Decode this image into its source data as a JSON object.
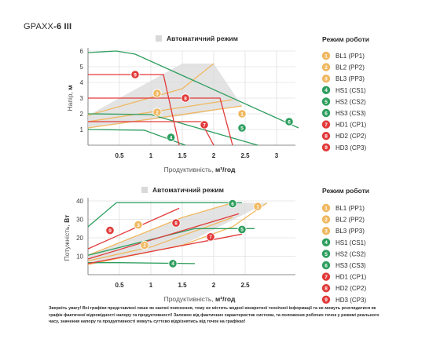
{
  "header": {
    "model_light": "GPA",
    "model_mid": "XX",
    "model_bold": "-6 III"
  },
  "colors": {
    "BL": "#f0b860",
    "HS": "#2e9e5e",
    "HD": "#e23a3a",
    "auto_fill": "#d9d9d9",
    "grid": "#e0e0e0"
  },
  "legend": {
    "title": "Режим роботи",
    "items": [
      {
        "num": "1",
        "label": "BL1 (PP1)",
        "group": "BL"
      },
      {
        "num": "2",
        "label": "BL2 (PP2)",
        "group": "BL"
      },
      {
        "num": "3",
        "label": "BL3 (PP3)",
        "group": "BL"
      },
      {
        "num": "4",
        "label": "HS1 (CS1)",
        "group": "HS"
      },
      {
        "num": "5",
        "label": "HS2 (CS2)",
        "group": "HS"
      },
      {
        "num": "6",
        "label": "HS3 (CS3)",
        "group": "HS"
      },
      {
        "num": "7",
        "label": "HD1 (CP1)",
        "group": "HD"
      },
      {
        "num": "8",
        "label": "HD2 (CP2)",
        "group": "HD"
      },
      {
        "num": "9",
        "label": "HD3 (CP3)",
        "group": "HD"
      }
    ]
  },
  "chart_data": [
    {
      "type": "line",
      "auto_mode_label": "Автоматичний режим",
      "xlabel": "Продуктивність,",
      "xlabel_unit": "м³/год",
      "ylabel": "Напір,",
      "ylabel_unit": "м",
      "xlim": [
        0,
        3.3
      ],
      "ylim": [
        0,
        6
      ],
      "xticks": [
        "0.5",
        "1",
        "1.5",
        "2",
        "2.5",
        "3"
      ],
      "yticks": [
        "1",
        "2",
        "3",
        "4",
        "5",
        "6"
      ],
      "grid": true,
      "legend_position": "right",
      "auto_region": [
        [
          0,
          1.9
        ],
        [
          1.5,
          5.2
        ],
        [
          2.0,
          5.2
        ],
        [
          2.45,
          2.5
        ],
        [
          1.55,
          1.9
        ],
        [
          0,
          1.1
        ]
      ],
      "series": [
        {
          "num": "1",
          "group": "BL",
          "points": [
            [
              0,
              1.1
            ],
            [
              2.45,
              2.5
            ]
          ],
          "badge": [
            2.45,
            2.0
          ]
        },
        {
          "num": "2",
          "group": "BL",
          "points": [
            [
              0,
              1.5
            ],
            [
              2.3,
              2.9
            ]
          ],
          "badge": [
            1.1,
            2.1
          ]
        },
        {
          "num": "3",
          "group": "BL",
          "points": [
            [
              0,
              1.9
            ],
            [
              1.5,
              3.6
            ],
            [
              2.0,
              5.2
            ]
          ],
          "badge": [
            1.1,
            3.3
          ]
        },
        {
          "num": "4",
          "group": "HS",
          "points": [
            [
              0,
              1.0
            ],
            [
              0.9,
              0.95
            ],
            [
              1.55,
              0.0
            ]
          ],
          "badge": [
            1.32,
            0.5
          ]
        },
        {
          "num": "5",
          "group": "HS",
          "points": [
            [
              0,
              2.0
            ],
            [
              1.0,
              1.95
            ],
            [
              2.7,
              0.0
            ]
          ],
          "badge": [
            2.45,
            1.1
          ]
        },
        {
          "num": "6",
          "group": "HS",
          "points": [
            [
              0,
              5.9
            ],
            [
              0.45,
              6.0
            ],
            [
              0.75,
              5.8
            ],
            [
              3.35,
              1.1
            ]
          ],
          "badge": [
            3.2,
            1.5
          ]
        },
        {
          "num": "7",
          "group": "HD",
          "points": [
            [
              0,
              1.5
            ],
            [
              1.8,
              1.5
            ],
            [
              2.0,
              0.0
            ]
          ],
          "badge": [
            1.85,
            1.3
          ]
        },
        {
          "num": "8",
          "group": "HD",
          "points": [
            [
              0,
              3.0
            ],
            [
              2.1,
              3.0
            ],
            [
              2.3,
              0.0
            ]
          ],
          "badge": [
            1.55,
            3.0
          ]
        },
        {
          "num": "9",
          "group": "HD",
          "points": [
            [
              0,
              4.5
            ],
            [
              1.2,
              4.5
            ],
            [
              1.45,
              0.0
            ]
          ],
          "badge": [
            0.75,
            4.5
          ]
        }
      ]
    },
    {
      "type": "line",
      "auto_mode_label": "Автоматичний режим",
      "xlabel": "Продуктивність,",
      "xlabel_unit": "м³/год",
      "ylabel": "Потужність,",
      "ylabel_unit": "Вт",
      "xlim": [
        0,
        3.3
      ],
      "ylim": [
        0,
        40
      ],
      "xticks": [
        "0.5",
        "1",
        "1.5",
        "2",
        "2.5"
      ],
      "yticks": [
        "10",
        "20",
        "30",
        "40"
      ],
      "grid": true,
      "legend_position": "right",
      "auto_region": [
        [
          0,
          10.5
        ],
        [
          1.5,
          31
        ],
        [
          2.3,
          39
        ],
        [
          2.85,
          39
        ],
        [
          1.5,
          16
        ],
        [
          0,
          5.5
        ]
      ],
      "series": [
        {
          "num": "1",
          "group": "BL",
          "points": [
            [
              0,
              5.5
            ],
            [
              1.5,
              16
            ],
            [
              2.3,
              26
            ],
            [
              2.85,
              39
            ]
          ],
          "badge": [
            2.7,
            37
          ]
        },
        {
          "num": "2",
          "group": "BL",
          "points": [
            [
              0,
              7.5
            ],
            [
              1.0,
              15
            ],
            [
              2.3,
              31
            ]
          ],
          "badge": [
            0.9,
            16
          ]
        },
        {
          "num": "3",
          "group": "BL",
          "points": [
            [
              0,
              10.5
            ],
            [
              1.5,
              31
            ],
            [
              2.3,
              39
            ]
          ],
          "badge": [
            0.8,
            27
          ]
        },
        {
          "num": "4",
          "group": "HS",
          "points": [
            [
              0,
              6.5
            ],
            [
              0.5,
              6.5
            ],
            [
              1.7,
              6.0
            ]
          ],
          "badge": [
            1.35,
            6.0
          ]
        },
        {
          "num": "5",
          "group": "HS",
          "points": [
            [
              0,
              10.5
            ],
            [
              1.7,
              25
            ],
            [
              2.65,
              25
            ]
          ],
          "badge": [
            2.45,
            24.5
          ]
        },
        {
          "num": "6",
          "group": "HS",
          "points": [
            [
              0,
              26
            ],
            [
              0.45,
              39
            ],
            [
              2.45,
              39
            ]
          ],
          "badge": [
            2.3,
            38.5
          ]
        },
        {
          "num": "7",
          "group": "HD",
          "points": [
            [
              0,
              6.0
            ],
            [
              2.45,
              22
            ]
          ],
          "badge": [
            1.95,
            20.5
          ]
        },
        {
          "num": "8",
          "group": "HD",
          "points": [
            [
              0,
              8.5
            ],
            [
              2.4,
              33
            ]
          ],
          "badge": [
            1.4,
            28
          ]
        },
        {
          "num": "9",
          "group": "HD",
          "points": [
            [
              0,
              14
            ],
            [
              1.45,
              36
            ]
          ],
          "badge": [
            0.35,
            24
          ]
        }
      ]
    }
  ],
  "disclaimer": "Зверніть увагу! Всі графіки представлені лише як наочні пояснення, тому не містять жодної конкретної технічної інформації та не можуть розглядатися як графік фактичної відповідності напору та продуктивності! Залежно від фактичних характеристик системи, та положення робочих точок у режимі реального часу, значення напору та продуктивності можуть суттєво відрізнятись від точок на графіках!"
}
